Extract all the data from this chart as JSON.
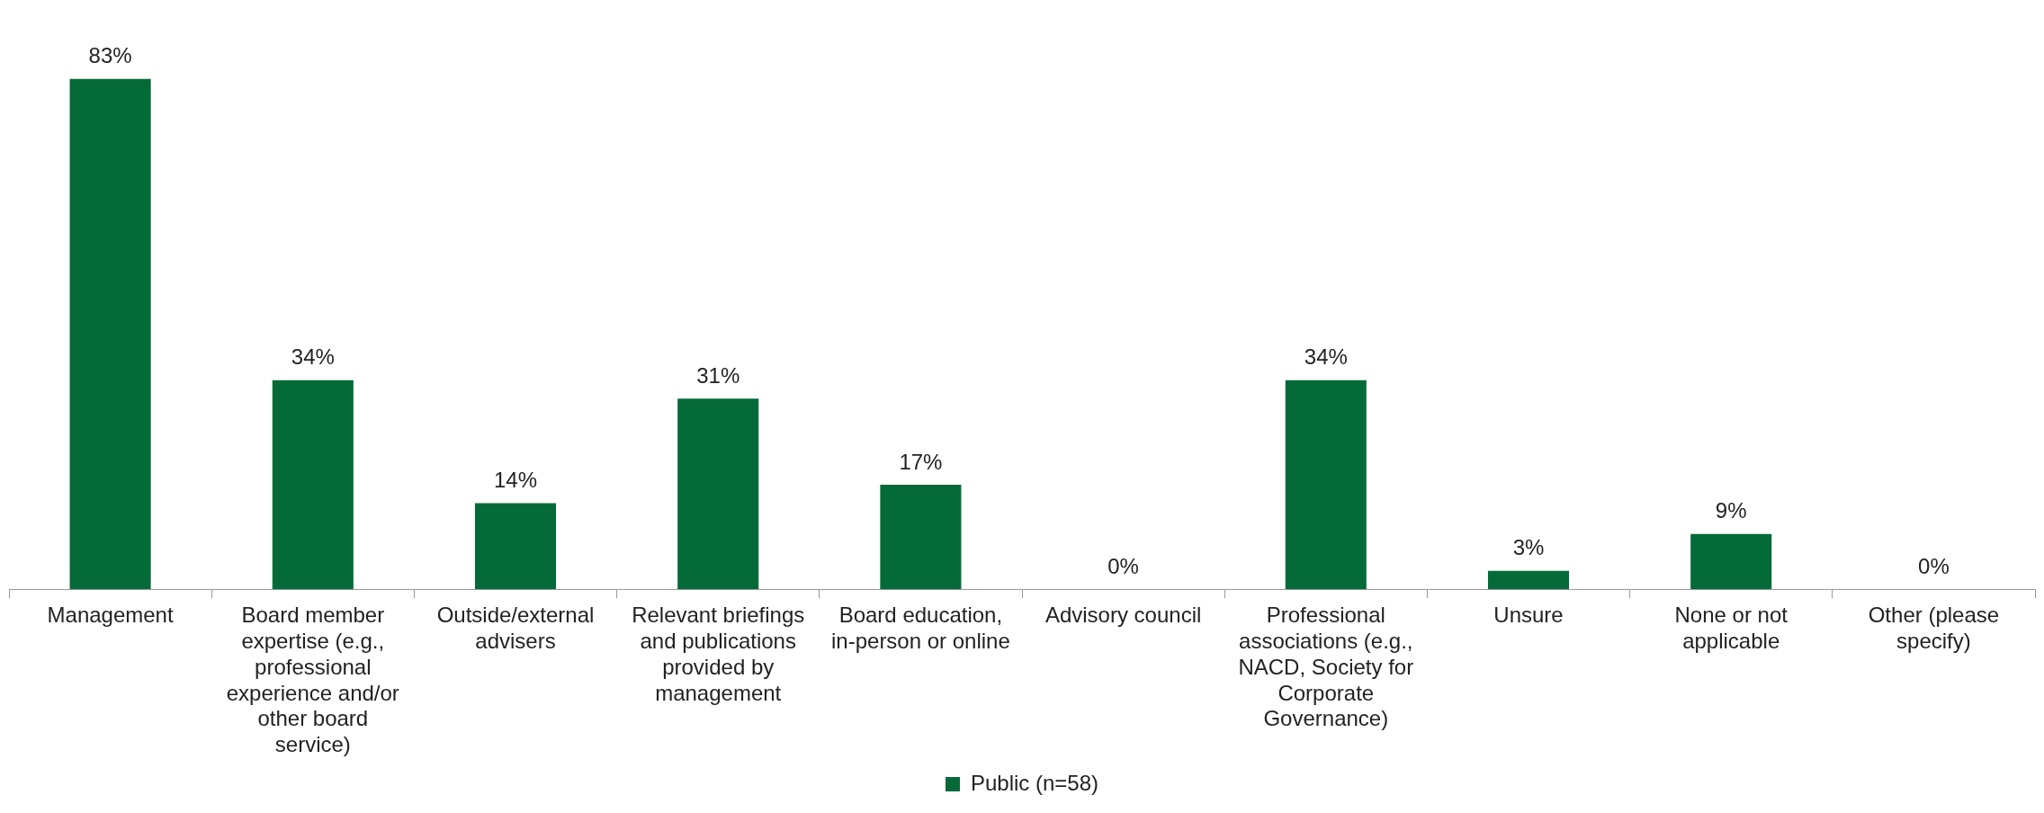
{
  "chart_data": {
    "type": "bar",
    "categories": [
      "Management",
      "Board member expertise (e.g., professional experience and/or other board service)",
      "Outside/external advisers",
      "Relevant briefings and publications provided by management",
      "Board education, in-person or online",
      "Advisory council",
      "Professional associations (e.g., NACD, Society for Corporate Governance)",
      "Unsure",
      "None or not applicable",
      "Other (please specify)"
    ],
    "series": [
      {
        "name": "Public (n=58)",
        "color": "#046a38",
        "values": [
          83,
          34,
          14,
          31,
          17,
          0,
          34,
          3,
          9,
          0
        ],
        "value_labels": [
          "83%",
          "34%",
          "14%",
          "31%",
          "17%",
          "0%",
          "34%",
          "3%",
          "9%",
          "0%"
        ]
      }
    ],
    "legend": "bottom",
    "grid": false
  }
}
